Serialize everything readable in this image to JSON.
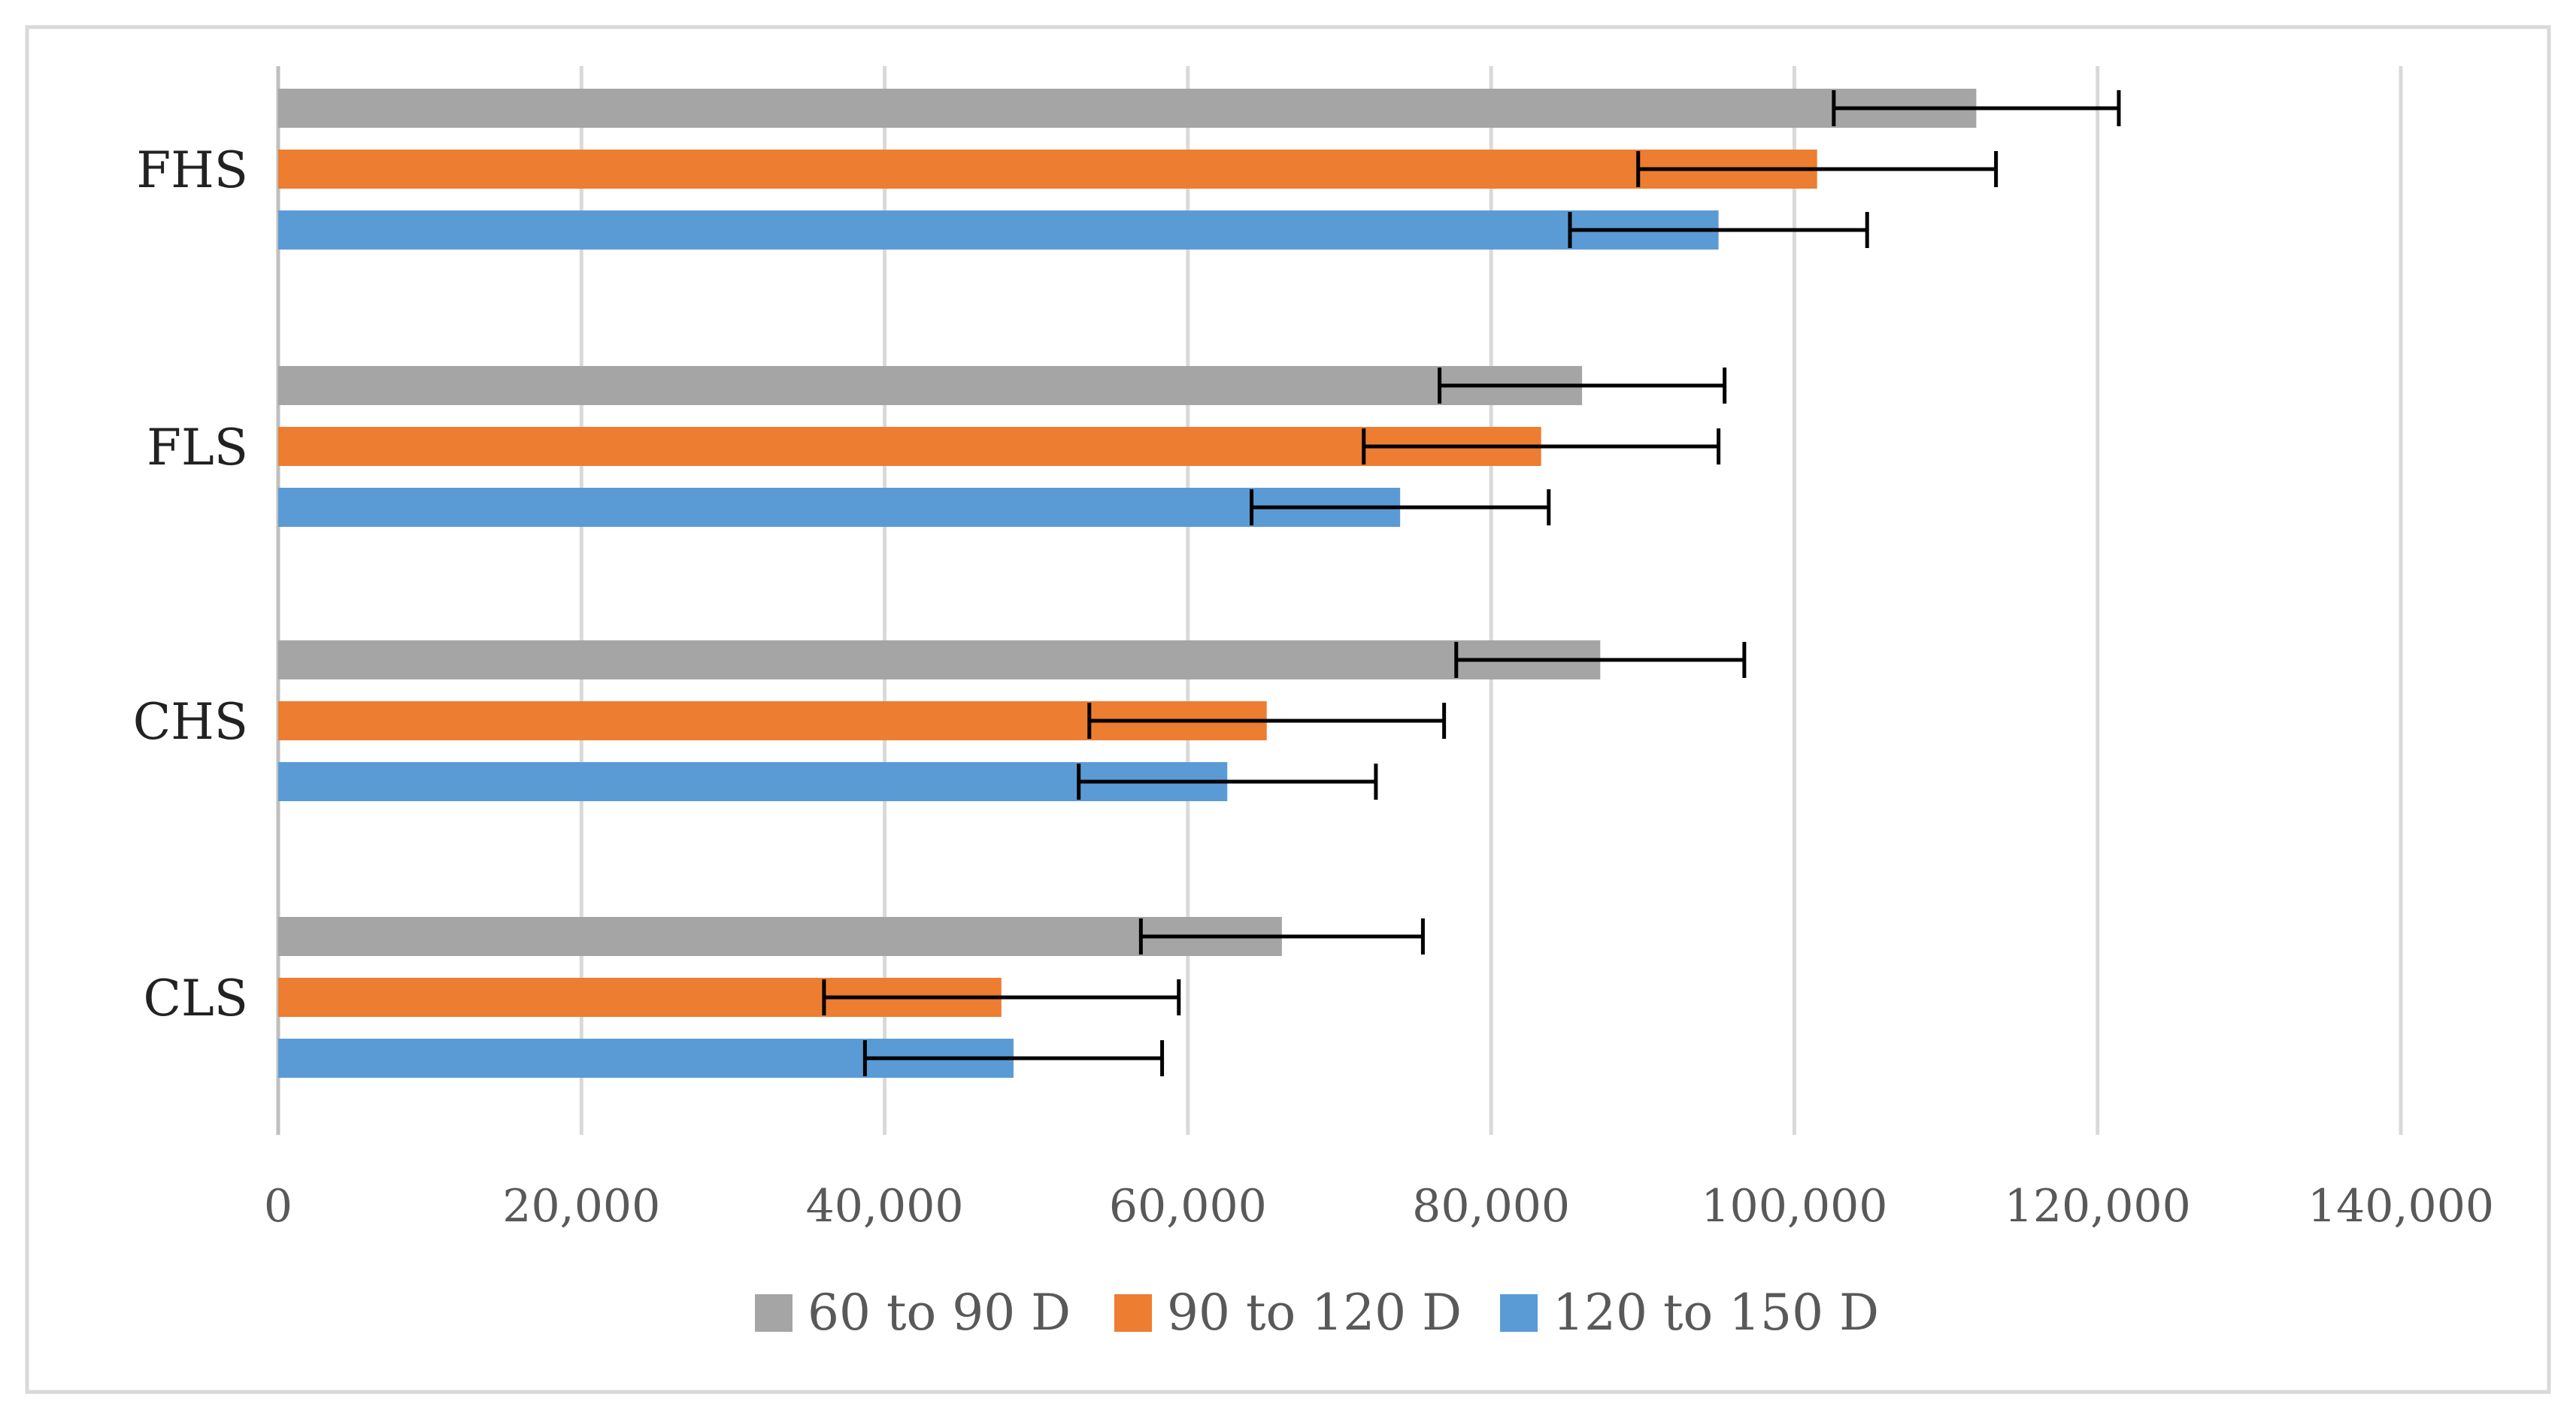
{
  "chart_data": {
    "type": "bar",
    "orientation": "horizontal",
    "title": "",
    "xlabel": "",
    "ylabel": "",
    "xlim": [
      0,
      140000
    ],
    "x_ticks": [
      0,
      20000,
      40000,
      60000,
      80000,
      100000,
      120000,
      140000
    ],
    "x_tick_labels": [
      "0",
      "20,000",
      "40,000",
      "60,000",
      "80,000",
      "100,000",
      "120,000",
      "140,000"
    ],
    "grid": true,
    "legend_position": "bottom",
    "categories": [
      "FHS",
      "FLS",
      "CHS",
      "CLS"
    ],
    "series": [
      {
        "name": "60 to 90 D",
        "color": "#a5a5a5",
        "values": [
          112000,
          86000,
          87200,
          66200
        ],
        "errors": [
          9400,
          9400,
          9500,
          9300
        ]
      },
      {
        "name": "90 to 120 D",
        "color": "#ed7d31",
        "values": [
          101500,
          83300,
          65200,
          47700
        ],
        "errors": [
          11800,
          11700,
          11700,
          11700
        ]
      },
      {
        "name": "120 to 150 D",
        "color": "#5b9bd5",
        "values": [
          95000,
          74000,
          62600,
          48500
        ],
        "errors": [
          9800,
          9800,
          9800,
          9800
        ]
      }
    ]
  },
  "colors": {
    "border": "#d9d9d9",
    "grid": "#d9d9d9",
    "axis": "#bfbfbf",
    "error_bar": "#000000"
  }
}
